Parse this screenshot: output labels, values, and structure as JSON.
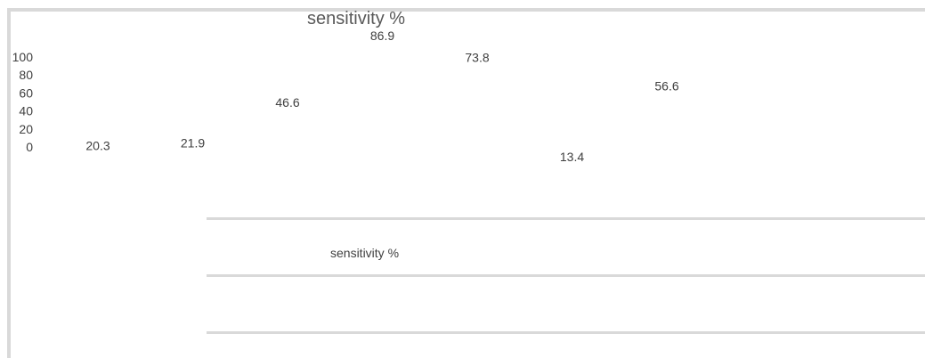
{
  "chart_data": {
    "type": "bar",
    "title": "sensitivity %",
    "xlabel": "",
    "ylabel": "",
    "y_ticks": [
      "100",
      "80",
      "60",
      "40",
      "20",
      "0"
    ],
    "ylim": [
      0,
      100
    ],
    "series": [
      {
        "name": "sensitivity %",
        "values": [
          20.3,
          21.9,
          46.6,
          86.9,
          73.8,
          13.4,
          56.6
        ]
      }
    ],
    "data_labels": [
      "20.3",
      "21.9",
      "46.6",
      "86.9",
      "73.8",
      "13.4",
      "56.6"
    ],
    "legend": {
      "label": "sensitivity %",
      "position": "bottom"
    },
    "grid": false
  }
}
